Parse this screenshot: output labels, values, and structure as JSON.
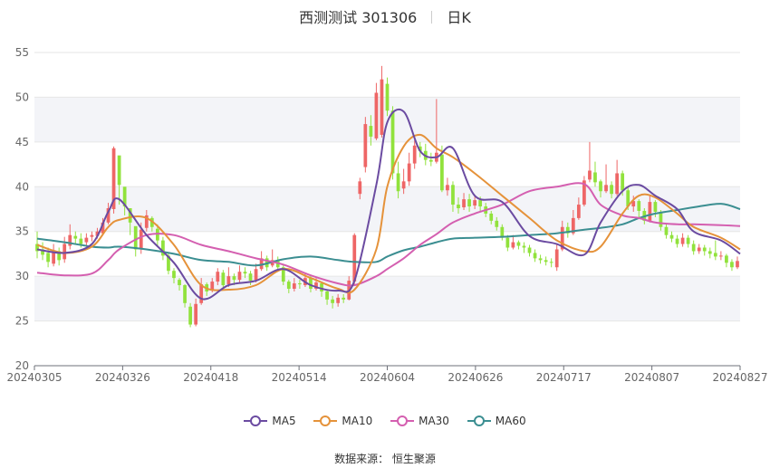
{
  "title": {
    "name": "西测测试 301306",
    "period": "日K"
  },
  "source": {
    "label": "数据来源：",
    "name": "恒生聚源"
  },
  "colors": {
    "up": "#ee6666",
    "down": "#91e23c",
    "ma5": "#6b4ba1",
    "ma10": "#e5923a",
    "ma30": "#d45fb0",
    "ma60": "#3b8e91",
    "grid": "#e6e6e6",
    "band": "#f3f4f8"
  },
  "chart_data": {
    "type": "candlestick",
    "x_ticks": [
      "20240305",
      "20240326",
      "20240418",
      "20240514",
      "20240604",
      "20240626",
      "20240717",
      "20240807",
      "20240827"
    ],
    "y_ticks": [
      20,
      25,
      30,
      35,
      40,
      45,
      50,
      55
    ],
    "ylim": [
      20,
      55
    ],
    "legend": [
      "MA5",
      "MA10",
      "MA30",
      "MA60"
    ],
    "candles": [
      [
        33.6,
        32.8,
        35.0,
        32.0
      ],
      [
        33.0,
        32.4,
        33.8,
        31.8
      ],
      [
        32.6,
        31.6,
        33.2,
        31.0
      ],
      [
        31.4,
        32.9,
        33.6,
        31.1
      ],
      [
        32.8,
        31.8,
        33.2,
        31.2
      ],
      [
        31.9,
        33.6,
        34.4,
        31.5
      ],
      [
        33.4,
        34.6,
        35.8,
        33.0
      ],
      [
        34.5,
        34.2,
        35.0,
        33.6
      ],
      [
        34.2,
        33.6,
        34.8,
        33.2
      ],
      [
        33.8,
        34.3,
        34.8,
        33.3
      ],
      [
        34.4,
        34.6,
        35.0,
        33.9
      ],
      [
        34.5,
        35.0,
        35.4,
        34.2
      ],
      [
        34.8,
        36.0,
        36.5,
        34.6
      ],
      [
        36.0,
        37.6,
        38.2,
        35.8
      ],
      [
        37.5,
        44.3,
        44.5,
        37.0
      ],
      [
        43.5,
        40.2,
        42.8,
        38.0
      ],
      [
        40.0,
        37.8,
        38.6,
        36.8
      ],
      [
        37.6,
        36.0,
        37.0,
        34.6
      ],
      [
        35.6,
        33.0,
        35.4,
        32.2
      ],
      [
        33.0,
        35.2,
        36.0,
        32.5
      ],
      [
        35.4,
        36.8,
        37.4,
        35.0
      ],
      [
        36.5,
        35.5,
        36.7,
        35.0
      ],
      [
        35.3,
        34.0,
        35.8,
        33.4
      ],
      [
        34.0,
        32.3,
        34.4,
        31.8
      ],
      [
        32.3,
        30.6,
        32.6,
        30.2
      ],
      [
        30.6,
        29.8,
        30.9,
        29.2
      ],
      [
        29.6,
        29.0,
        29.8,
        28.4
      ],
      [
        29.0,
        27.0,
        29.1,
        26.5
      ],
      [
        26.6,
        24.6,
        27.0,
        24.3
      ],
      [
        24.6,
        26.9,
        27.5,
        24.4
      ],
      [
        27.0,
        29.1,
        29.8,
        26.8
      ],
      [
        29.1,
        28.3,
        29.3,
        27.8
      ],
      [
        28.4,
        29.4,
        29.8,
        28.2
      ],
      [
        29.4,
        30.5,
        30.9,
        29.0
      ],
      [
        30.4,
        29.0,
        30.7,
        28.6
      ],
      [
        29.1,
        30.0,
        31.0,
        28.8
      ],
      [
        30.0,
        29.6,
        30.3,
        29.0
      ],
      [
        29.6,
        30.5,
        31.2,
        29.3
      ],
      [
        30.5,
        30.3,
        31.0,
        29.8
      ],
      [
        30.3,
        29.5,
        30.6,
        29.0
      ],
      [
        29.6,
        30.8,
        31.4,
        29.3
      ],
      [
        30.8,
        32.0,
        32.8,
        30.6
      ],
      [
        32.0,
        31.0,
        32.3,
        30.6
      ],
      [
        31.2,
        31.8,
        33.0,
        31.0
      ],
      [
        31.8,
        31.0,
        32.2,
        30.5
      ],
      [
        31.0,
        29.4,
        31.3,
        29.0
      ],
      [
        29.4,
        28.6,
        29.6,
        28.1
      ],
      [
        28.6,
        29.2,
        29.8,
        28.3
      ],
      [
        29.2,
        29.1,
        29.6,
        28.6
      ],
      [
        29.0,
        29.8,
        30.3,
        28.8
      ],
      [
        29.8,
        28.6,
        30.1,
        28.2
      ],
      [
        28.6,
        29.3,
        29.8,
        28.4
      ],
      [
        29.2,
        28.3,
        29.4,
        27.7
      ],
      [
        28.3,
        27.4,
        28.5,
        26.8
      ],
      [
        27.4,
        27.0,
        27.8,
        26.4
      ],
      [
        27.0,
        27.6,
        28.0,
        26.6
      ],
      [
        27.6,
        27.4,
        28.0,
        27.0
      ],
      [
        27.4,
        29.5,
        30.0,
        27.3
      ],
      [
        29.4,
        34.6,
        34.8,
        29.0
      ],
      [
        39.2,
        40.6,
        41.0,
        38.6
      ],
      [
        42.2,
        47.0,
        47.8,
        41.6
      ],
      [
        46.8,
        45.6,
        48.0,
        44.6
      ],
      [
        45.4,
        50.5,
        51.6,
        45.2
      ],
      [
        45.8,
        52.0,
        53.5,
        45.5
      ],
      [
        51.5,
        48.5,
        52.2,
        47.9
      ],
      [
        48.5,
        41.5,
        49.0,
        40.8
      ],
      [
        41.5,
        39.5,
        42.8,
        38.7
      ],
      [
        39.8,
        40.6,
        42.0,
        39.2
      ],
      [
        40.6,
        42.6,
        43.8,
        40.1
      ],
      [
        42.6,
        44.6,
        45.2,
        42.0
      ],
      [
        44.5,
        44.0,
        45.0,
        43.3
      ],
      [
        44.0,
        43.0,
        44.8,
        42.4
      ],
      [
        43.0,
        42.8,
        43.8,
        42.3
      ],
      [
        42.8,
        43.8,
        49.8,
        42.6
      ],
      [
        43.6,
        39.6,
        44.6,
        39.4
      ],
      [
        39.6,
        40.2,
        41.0,
        39.0
      ],
      [
        40.2,
        38.0,
        40.6,
        37.2
      ],
      [
        38.0,
        37.6,
        38.8,
        37.0
      ],
      [
        37.7,
        38.6,
        39.3,
        37.4
      ],
      [
        38.6,
        37.8,
        39.2,
        37.2
      ],
      [
        37.9,
        38.5,
        39.0,
        37.5
      ],
      [
        38.5,
        37.8,
        38.9,
        37.3
      ],
      [
        37.8,
        37.0,
        38.2,
        36.6
      ],
      [
        37.0,
        36.2,
        37.3,
        35.8
      ],
      [
        36.2,
        35.5,
        36.6,
        35.1
      ],
      [
        35.5,
        34.3,
        35.8,
        34.0
      ],
      [
        34.3,
        33.2,
        34.6,
        32.8
      ],
      [
        33.2,
        33.8,
        34.6,
        33.0
      ],
      [
        33.8,
        33.4,
        34.0,
        33.0
      ],
      [
        33.4,
        33.2,
        33.8,
        32.6
      ],
      [
        33.2,
        32.6,
        33.5,
        32.2
      ],
      [
        32.6,
        32.0,
        33.0,
        31.6
      ],
      [
        32.0,
        31.8,
        32.4,
        31.4
      ],
      [
        31.8,
        31.6,
        32.2,
        31.2
      ],
      [
        31.6,
        31.5,
        32.0,
        31.0
      ],
      [
        31.0,
        33.0,
        33.6,
        30.6
      ],
      [
        33.0,
        35.5,
        36.2,
        32.8
      ],
      [
        35.5,
        34.8,
        36.0,
        34.3
      ],
      [
        34.8,
        36.5,
        37.4,
        34.6
      ],
      [
        36.5,
        38.0,
        38.8,
        36.3
      ],
      [
        38.0,
        40.7,
        41.2,
        37.8
      ],
      [
        40.8,
        41.8,
        45.0,
        40.5
      ],
      [
        41.6,
        40.5,
        42.8,
        40.0
      ],
      [
        40.6,
        39.5,
        40.8,
        38.8
      ],
      [
        39.5,
        40.2,
        42.5,
        39.3
      ],
      [
        40.2,
        39.2,
        40.6,
        38.7
      ],
      [
        39.2,
        41.5,
        43.0,
        39.0
      ],
      [
        41.5,
        39.6,
        41.8,
        39.0
      ],
      [
        39.6,
        37.8,
        39.9,
        37.4
      ],
      [
        37.8,
        38.4,
        39.0,
        37.2
      ],
      [
        38.4,
        37.3,
        38.6,
        36.5
      ],
      [
        37.3,
        36.2,
        37.6,
        35.8
      ],
      [
        36.2,
        38.3,
        39.0,
        36.0
      ],
      [
        38.3,
        37.2,
        38.5,
        36.6
      ],
      [
        37.2,
        35.5,
        37.4,
        35.1
      ],
      [
        35.5,
        34.6,
        35.9,
        34.2
      ],
      [
        34.6,
        34.2,
        35.0,
        33.8
      ],
      [
        34.2,
        33.6,
        34.6,
        33.2
      ],
      [
        33.6,
        34.3,
        34.8,
        33.3
      ],
      [
        34.3,
        33.6,
        34.6,
        33.2
      ],
      [
        33.6,
        32.8,
        34.0,
        32.4
      ],
      [
        32.8,
        33.2,
        33.6,
        32.5
      ],
      [
        33.2,
        32.8,
        33.5,
        32.3
      ],
      [
        32.8,
        32.5,
        33.2,
        32.0
      ],
      [
        32.6,
        32.2,
        34.0,
        31.8
      ],
      [
        32.2,
        32.3,
        32.8,
        31.8
      ],
      [
        32.3,
        31.5,
        32.5,
        31.0
      ],
      [
        31.6,
        31.0,
        31.9,
        30.6
      ],
      [
        31.0,
        31.7,
        32.2,
        30.8
      ]
    ],
    "ma_key_x": [
      0,
      5,
      10,
      13,
      15,
      20,
      25,
      30,
      35,
      40,
      45,
      50,
      55,
      58,
      62,
      64,
      67,
      70,
      73,
      76,
      80,
      85,
      90,
      95,
      100,
      103,
      107,
      110,
      113,
      117,
      120,
      125,
      129
    ],
    "ma5": [
      33.0,
      32.6,
      33.6,
      37.2,
      38.6,
      34.6,
      31.5,
      27.5,
      29.0,
      29.5,
      30.8,
      29.0,
      28.4,
      29.5,
      40.2,
      47.2,
      48.4,
      44.0,
      43.3,
      44.3,
      39.0,
      38.3,
      34.5,
      33.6,
      32.4,
      36.0,
      39.5,
      40.2,
      39.0,
      37.5,
      35.0,
      34.0,
      32.5
    ],
    "ma10": [
      33.5,
      32.6,
      33.3,
      35.5,
      36.3,
      36.5,
      33.5,
      29.0,
      28.5,
      29.0,
      30.8,
      29.8,
      28.6,
      28.5,
      33.0,
      40.0,
      44.5,
      45.8,
      44.3,
      43.3,
      41.5,
      39.0,
      36.5,
      34.0,
      32.8,
      33.3,
      37.0,
      39.0,
      38.8,
      37.0,
      35.5,
      34.3,
      33.0
    ],
    "ma30": [
      30.4,
      30.1,
      30.3,
      31.8,
      33.0,
      34.6,
      34.6,
      33.5,
      32.8,
      32.0,
      31.3,
      30.1,
      29.2,
      29.0,
      30.0,
      30.8,
      32.0,
      33.5,
      34.7,
      36.0,
      37.0,
      38.0,
      39.5,
      40.0,
      40.3,
      38.0,
      36.8,
      36.5,
      36.0,
      35.8,
      35.8,
      35.7,
      35.6
    ],
    "ma60": [
      34.2,
      33.8,
      33.3,
      33.2,
      33.3,
      33.0,
      32.5,
      31.8,
      31.6,
      31.2,
      31.9,
      32.2,
      31.8,
      31.6,
      31.6,
      32.2,
      32.9,
      33.3,
      33.8,
      34.2,
      34.3,
      34.4,
      34.6,
      34.8,
      35.2,
      35.4,
      35.8,
      36.5,
      37.0,
      37.4,
      37.7,
      38.1,
      37.5
    ]
  }
}
